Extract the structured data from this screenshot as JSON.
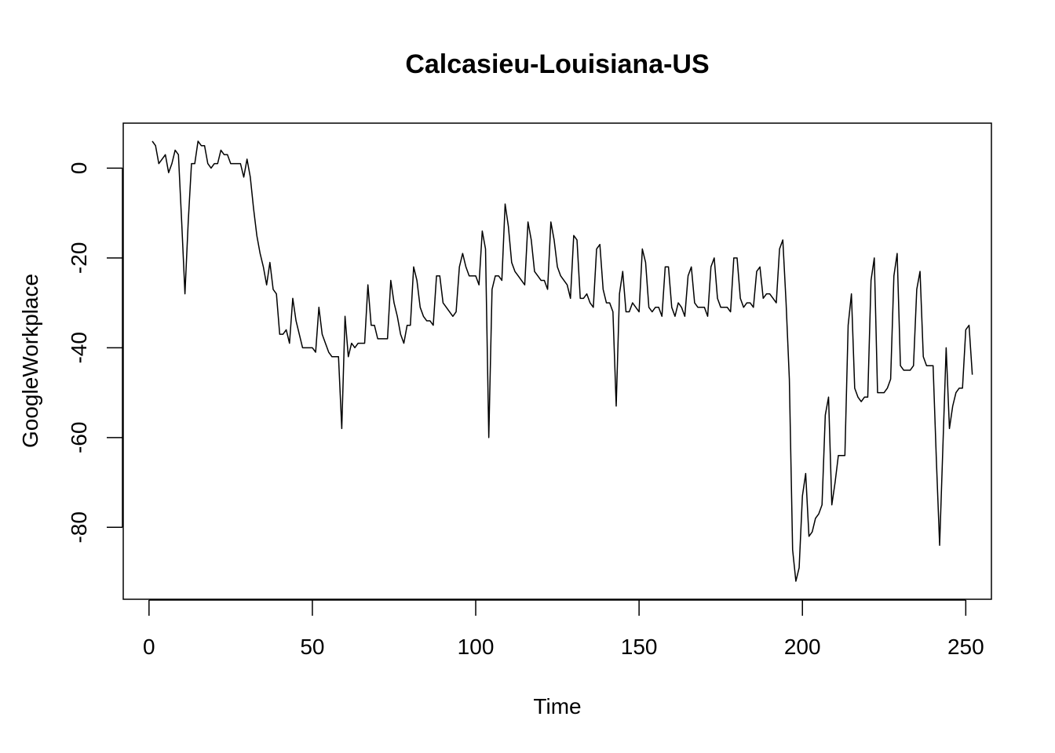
{
  "chart_data": {
    "type": "line",
    "title": "Calcasieu-Louisiana-US",
    "xlabel": "Time",
    "ylabel": "GoogleWorkplace",
    "xlim": [
      1,
      248
    ],
    "ylim": [
      -92,
      6
    ],
    "x_ticks": [
      "0",
      "50",
      "100",
      "150",
      "200",
      "250"
    ],
    "y_ticks": [
      "0",
      "-20",
      "-40",
      "-60",
      "-80"
    ],
    "grid": false,
    "line_color": "#000000",
    "series": [
      {
        "x_start": 1,
        "values": [
          6,
          5,
          1,
          2,
          3,
          -1,
          1,
          4,
          3,
          -12,
          -28,
          -12,
          1,
          1,
          6,
          5,
          5,
          1,
          0,
          1,
          1,
          4,
          3,
          3,
          1,
          1,
          1,
          1,
          -2,
          2,
          -2,
          -9,
          -15,
          -19,
          -22,
          -26,
          -21,
          -27,
          -28,
          -37,
          -37,
          -36,
          -39,
          -29,
          -34,
          -37,
          -40,
          -40,
          -40,
          -40,
          -41,
          -31,
          -37,
          -39,
          -41,
          -42,
          -42,
          -42,
          -58,
          -33,
          -42,
          -39,
          -40,
          -39,
          -39,
          -39,
          -26,
          -35,
          -35,
          -38,
          -38,
          -38,
          -38,
          -25,
          -30,
          -33,
          -37,
          -39,
          -35,
          -35,
          -22,
          -25,
          -31,
          -33,
          -34,
          -34,
          -35,
          -24,
          -24,
          -30,
          -31,
          -32,
          -33,
          -32,
          -22,
          -19,
          -22,
          -24,
          -24,
          -24,
          -26,
          -14,
          -18,
          -60,
          -27,
          -24,
          -24,
          -25,
          -8,
          -13,
          -21,
          -23,
          -24,
          -25,
          -26,
          -12,
          -16,
          -23,
          -24,
          -25,
          -25,
          -27,
          -12,
          -16,
          -22,
          -24,
          -25,
          -26,
          -29,
          -15,
          -16,
          -29,
          -29,
          -28,
          -30,
          -31,
          -18,
          -17,
          -27,
          -30,
          -30,
          -32,
          -53,
          -28,
          -23,
          -32,
          -32,
          -30,
          -31,
          -32,
          -18,
          -21,
          -31,
          -32,
          -31,
          -31,
          -33,
          -22,
          -22,
          -31,
          -33,
          -30,
          -31,
          -33,
          -24,
          -22,
          -30,
          -31,
          -31,
          -31,
          -33,
          -22,
          -20,
          -29,
          -31,
          -31,
          -31,
          -32,
          -20,
          -20,
          -29,
          -31,
          -30,
          -30,
          -31,
          -23,
          -22,
          -29,
          -28,
          -28,
          -29,
          -30,
          -18,
          -16,
          -30,
          -47,
          -85,
          -92,
          -89,
          -73,
          -68,
          -82,
          -81,
          -78,
          -77,
          -75,
          -55,
          -51,
          -75,
          -70,
          -64,
          -64,
          -64,
          -35,
          -28,
          -49,
          -51,
          -52,
          -51,
          -51,
          -25,
          -20,
          -50,
          -50,
          -50,
          -49,
          -47,
          -24,
          -19,
          -44,
          -45,
          -45,
          -45,
          -44,
          -27,
          -23,
          -42,
          -44,
          -44,
          -44,
          -65,
          -84,
          -62,
          -40,
          -58,
          -53,
          -50,
          -49,
          -49,
          -36,
          -35,
          -46
        ]
      }
    ]
  }
}
